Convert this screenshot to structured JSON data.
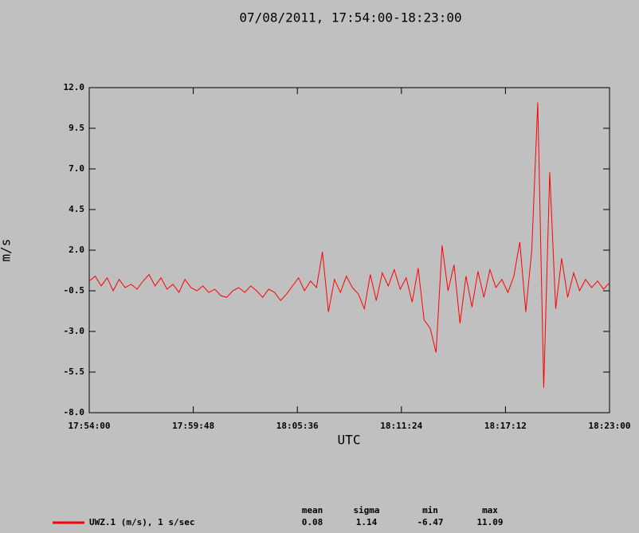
{
  "chart_data": {
    "type": "line",
    "title": "07/08/2011, 17:54:00-18:23:00",
    "ylabel": "m/s",
    "xlabel": "UTC",
    "x": [
      "17:54:00",
      "17:54:20",
      "17:54:40",
      "17:55:00",
      "17:55:20",
      "17:55:40",
      "17:56:00",
      "17:56:20",
      "17:56:40",
      "17:57:00",
      "17:57:20",
      "17:57:40",
      "17:58:00",
      "17:58:20",
      "17:58:40",
      "17:59:00",
      "17:59:20",
      "17:59:40",
      "18:00:00",
      "18:00:20",
      "18:00:40",
      "18:01:00",
      "18:01:20",
      "18:01:40",
      "18:02:00",
      "18:02:20",
      "18:02:40",
      "18:03:00",
      "18:03:20",
      "18:03:40",
      "18:04:00",
      "18:04:20",
      "18:04:40",
      "18:05:00",
      "18:05:20",
      "18:05:40",
      "18:06:00",
      "18:06:20",
      "18:06:40",
      "18:07:00",
      "18:07:20",
      "18:07:40",
      "18:08:00",
      "18:08:20",
      "18:08:40",
      "18:09:00",
      "18:09:20",
      "18:09:40",
      "18:10:00",
      "18:10:20",
      "18:10:40",
      "18:11:00",
      "18:11:20",
      "18:11:40",
      "18:12:00",
      "18:12:20",
      "18:12:40",
      "18:13:00",
      "18:13:20",
      "18:13:40",
      "18:14:00",
      "18:14:20",
      "18:14:40",
      "18:15:00",
      "18:15:20",
      "18:15:40",
      "18:16:00",
      "18:16:20",
      "18:16:40",
      "18:17:00",
      "18:17:20",
      "18:17:40",
      "18:18:00",
      "18:18:20",
      "18:18:40",
      "18:19:00",
      "18:19:20",
      "18:19:40",
      "18:20:00",
      "18:20:20",
      "18:20:40",
      "18:21:00",
      "18:21:20",
      "18:21:40",
      "18:22:00",
      "18:22:20",
      "18:22:40",
      "18:23:00"
    ],
    "series": [
      {
        "name": "UWZ.1 (m/s), 1 s/sec",
        "color": "#ff0000",
        "values": [
          0.1,
          0.4,
          -0.2,
          0.3,
          -0.5,
          0.2,
          -0.3,
          -0.1,
          -0.4,
          0.1,
          0.5,
          -0.2,
          0.3,
          -0.4,
          -0.1,
          -0.6,
          0.2,
          -0.3,
          -0.5,
          -0.2,
          -0.6,
          -0.4,
          -0.8,
          -0.9,
          -0.5,
          -0.3,
          -0.6,
          -0.2,
          -0.5,
          -0.9,
          -0.4,
          -0.6,
          -1.1,
          -0.7,
          -0.2,
          0.3,
          -0.5,
          0.1,
          -0.3,
          1.9,
          -1.8,
          0.2,
          -0.6,
          0.4,
          -0.3,
          -0.7,
          -1.6,
          0.5,
          -1.1,
          0.6,
          -0.2,
          0.8,
          -0.4,
          0.3,
          -1.2,
          0.9,
          -2.3,
          -2.8,
          -4.3,
          2.3,
          -0.5,
          1.1,
          -2.5,
          0.4,
          -1.5,
          0.7,
          -0.9,
          0.8,
          -0.3,
          0.2,
          -0.6,
          0.4,
          2.5,
          -1.8,
          2.0,
          11.09,
          -6.47,
          6.8,
          -1.6,
          1.5,
          -0.9,
          0.6,
          -0.5,
          0.2,
          -0.3,
          0.1,
          -0.4,
          0.0
        ]
      }
    ],
    "xlim": [
      "17:54:00",
      "18:23:00"
    ],
    "xticks": [
      "17:54:00",
      "17:59:48",
      "18:05:36",
      "18:11:24",
      "18:17:12",
      "18:23:00"
    ],
    "ylim": [
      -8,
      12
    ],
    "yticks": [
      {
        "value": -8,
        "label": "-8.0"
      },
      -5.5,
      {
        "value": -3,
        "label": "-3.0"
      },
      -0.5,
      {
        "value": 2,
        "label": "2.0"
      },
      4.5,
      {
        "value": 7,
        "label": "7.0"
      },
      9.5,
      {
        "value": 12,
        "label": "12.0"
      }
    ],
    "stats": {
      "headers": [
        "mean",
        "sigma",
        "min",
        "max"
      ],
      "values": [
        0.08,
        1.14,
        -6.47,
        11.09
      ]
    }
  }
}
